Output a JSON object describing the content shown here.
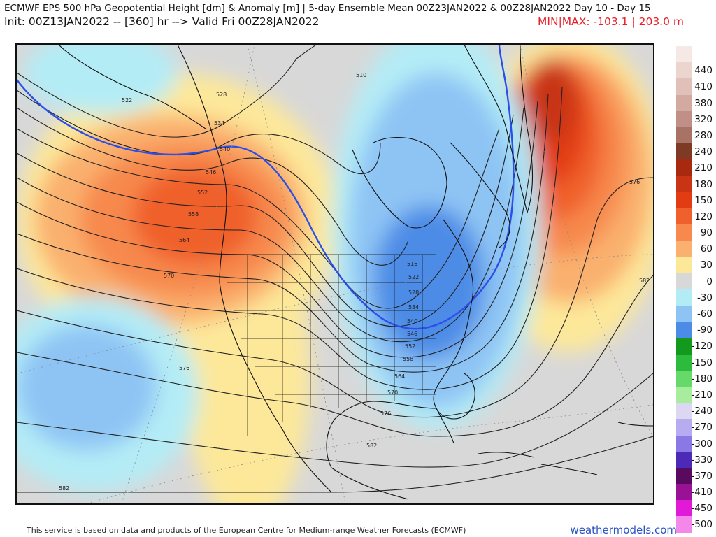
{
  "header": {
    "title": "ECMWF EPS 500 hPa Geopotential Height [dm] & Anomaly [m] | 5-day Ensemble Mean 00Z23JAN2022 & 00Z28JAN2022   Day 10 - Day 15",
    "subtitle": "Init: 00Z13JAN2022 -- [360] hr --> Valid Fri 00Z28JAN2022",
    "minmax": "MIN|MAX: -103.1 | 203.0 m"
  },
  "legend": [
    {
      "label": "",
      "color": "#f6e8e4"
    },
    {
      "label": "440",
      "color": "#ecd5cf"
    },
    {
      "label": "410",
      "color": "#e0c0b8"
    },
    {
      "label": "380",
      "color": "#d2aaa0"
    },
    {
      "label": "320",
      "color": "#c09088"
    },
    {
      "label": "280",
      "color": "#a87266"
    },
    {
      "label": "240",
      "color": "#7f3a26"
    },
    {
      "label": "210",
      "color": "#a92810"
    },
    {
      "label": "180",
      "color": "#c83414"
    },
    {
      "label": "150",
      "color": "#e23c14"
    },
    {
      "label": "120",
      "color": "#f0602c"
    },
    {
      "label": "90",
      "color": "#f7894e"
    },
    {
      "label": "60",
      "color": "#fab06e"
    },
    {
      "label": "30",
      "color": "#fde89a"
    },
    {
      "label": "0",
      "color": "#d8d8d8"
    },
    {
      "label": "-30",
      "color": "#b4ecf6"
    },
    {
      "label": "-60",
      "color": "#8ec4f4"
    },
    {
      "label": "-90",
      "color": "#4d8ce6"
    },
    {
      "label": "-120",
      "color": "#139a1e"
    },
    {
      "label": "-150",
      "color": "#2dbb3d"
    },
    {
      "label": "-180",
      "color": "#67d86a"
    },
    {
      "label": "-210",
      "color": "#a8ec9e"
    },
    {
      "label": "-240",
      "color": "#dcd8f4"
    },
    {
      "label": "-270",
      "color": "#b8acf0"
    },
    {
      "label": "-300",
      "color": "#8a78e4"
    },
    {
      "label": "-330",
      "color": "#4a2ab6"
    },
    {
      "label": "-370",
      "color": "#5a0a5e"
    },
    {
      "label": "-410",
      "color": "#9a1294"
    },
    {
      "label": "-450",
      "color": "#e01ad8"
    },
    {
      "label": "-500",
      "color": "#f488ea"
    }
  ],
  "contour_labels": [
    "522",
    "528",
    "534",
    "540",
    "546",
    "552",
    "558",
    "564",
    "570",
    "576",
    "582",
    "510",
    "516",
    "522",
    "528",
    "534",
    "540",
    "546",
    "552",
    "558",
    "564",
    "570",
    "576",
    "576",
    "582",
    "582"
  ],
  "footer": {
    "credit": "This service is based on data and products of the European Centre for Medium-range Weather Forecasts (ECMWF)",
    "site": "weathermodels.com"
  },
  "colors": {
    "land_outline": "#111111",
    "height_contour": "#222222",
    "contour_540": "#2a4fe8",
    "minmax_text": "#e8202a",
    "site_link": "#2a53c6"
  }
}
